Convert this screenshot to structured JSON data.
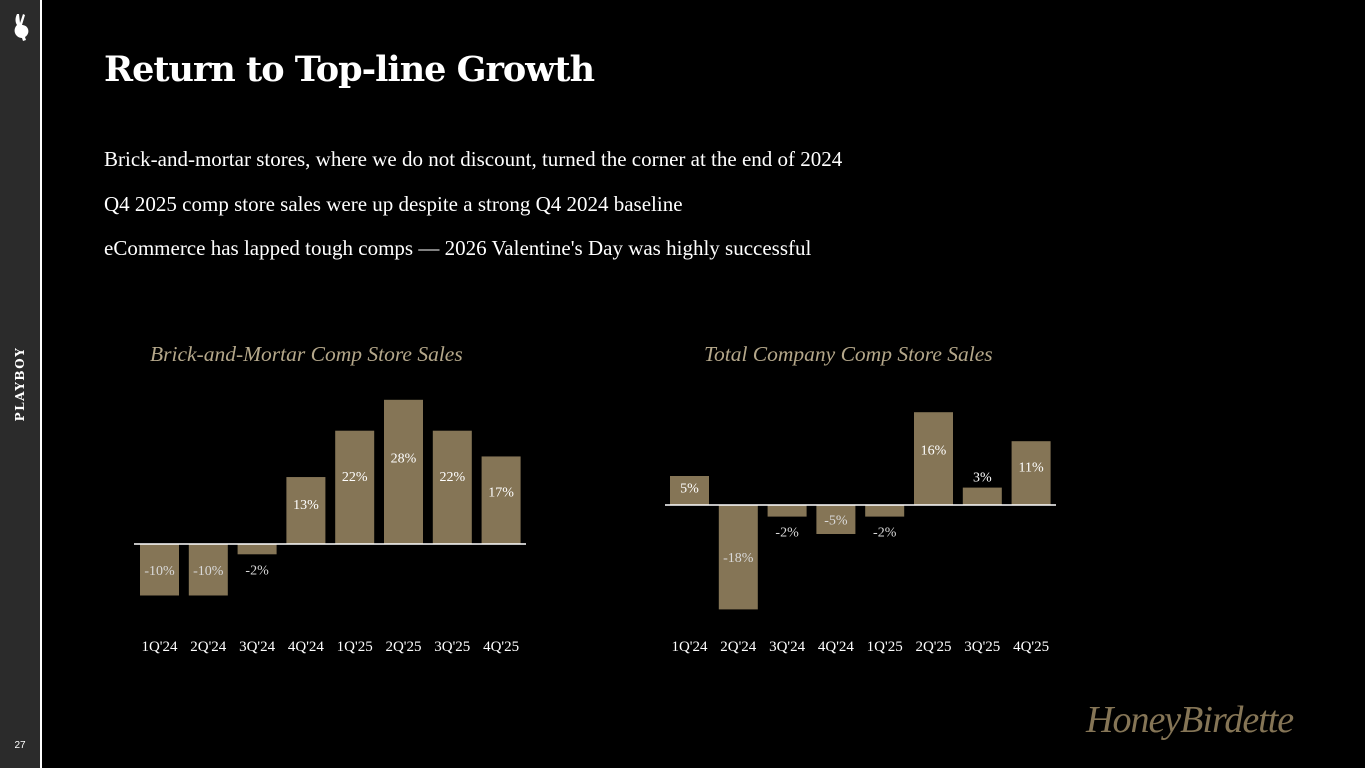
{
  "sidebar": {
    "brand": "PLAYBOY",
    "page_number": "27",
    "logo_icon": "bunny-head-icon"
  },
  "title": "Return to Top-line Growth",
  "bullets": [
    "Brick-and-mortar stores, where we do not discount, turned the corner at the end of 2024",
    "Q4 2025 comp store sales were up despite a strong Q4 2024 baseline",
    "eCommerce has lapped tough comps — 2026 Valentine's Day was highly successful"
  ],
  "footer": {
    "brand": "HoneyBirdette"
  },
  "colors": {
    "bar": "#857556",
    "chart_title": "#b4a78a",
    "positive_label": "#ffffff",
    "negative_label": "#d9d9d9",
    "background": "#000000",
    "sidebar": "#2b2b2b"
  },
  "chart_data": [
    {
      "type": "bar",
      "title": "Brick-and-Mortar Comp Store Sales",
      "categories": [
        "1Q'24",
        "2Q'24",
        "3Q'24",
        "4Q'24",
        "1Q'25",
        "2Q'25",
        "3Q'25",
        "4Q'25"
      ],
      "values": [
        -10,
        -10,
        -2,
        13,
        22,
        28,
        22,
        17
      ],
      "labels": [
        "-10%",
        "-10%",
        "-2%",
        "13%",
        "22%",
        "28%",
        "22%",
        "17%"
      ],
      "xlabel": "",
      "ylabel": "",
      "grid": false
    },
    {
      "type": "bar",
      "title": "Total Company Comp Store Sales",
      "categories": [
        "1Q'24",
        "2Q'24",
        "3Q'24",
        "4Q'24",
        "1Q'25",
        "2Q'25",
        "3Q'25",
        "4Q'25"
      ],
      "values": [
        5,
        -18,
        -2,
        -5,
        -2,
        16,
        3,
        11
      ],
      "labels": [
        "5%",
        "-18%",
        "-2%",
        "-5%",
        "-2%",
        "16%",
        "3%",
        "11%"
      ],
      "xlabel": "",
      "ylabel": "",
      "grid": false
    }
  ]
}
